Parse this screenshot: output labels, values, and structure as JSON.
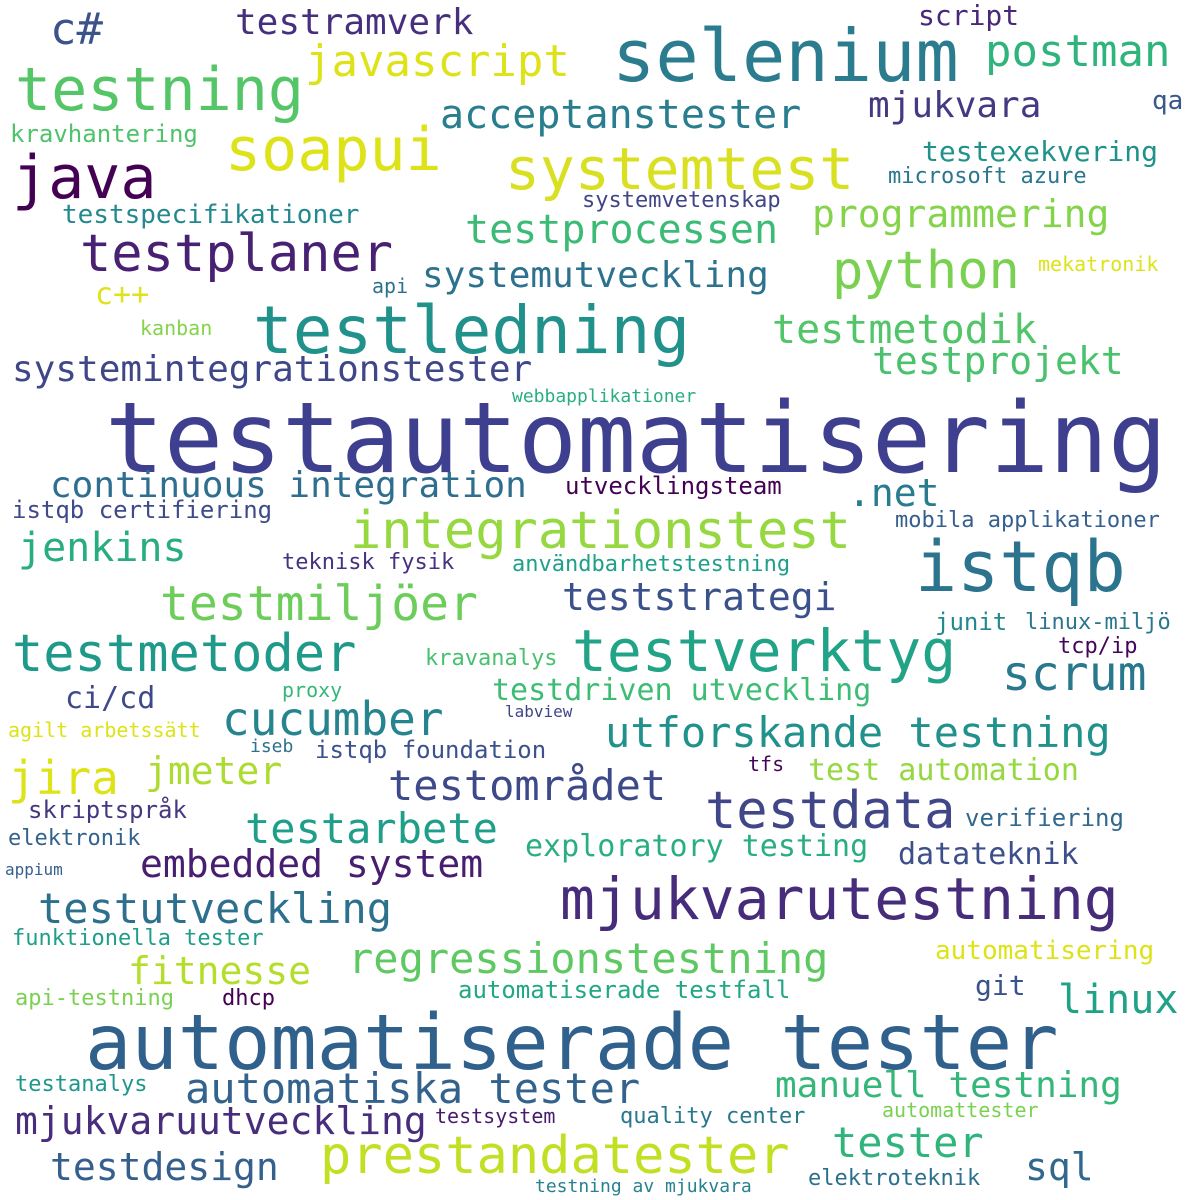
{
  "words": [
    {
      "text": "testautomatisering",
      "color": "#3f3f8f"
    },
    {
      "text": "automatiserade tester",
      "color": "#30608c"
    },
    {
      "text": "selenium",
      "color": "#2a7c8e"
    },
    {
      "text": "mjukvarutestning",
      "color": "#462c7a"
    },
    {
      "text": "testledning",
      "color": "#21918c"
    },
    {
      "text": "istqb",
      "color": "#2c738e"
    },
    {
      "text": "testverktyg",
      "color": "#20a386"
    },
    {
      "text": "systemtest",
      "color": "#d9e021"
    },
    {
      "text": "integrationstest",
      "color": "#95d840"
    },
    {
      "text": "prestandatester",
      "color": "#c2df23"
    },
    {
      "text": "testning",
      "color": "#55c667"
    },
    {
      "text": "soapui",
      "color": "#dde318"
    },
    {
      "text": "java",
      "color": "#440154"
    },
    {
      "text": "python",
      "color": "#7ad151"
    },
    {
      "text": "testplaner",
      "color": "#482173"
    },
    {
      "text": "testdata",
      "color": "#404688"
    },
    {
      "text": "testmetoder",
      "color": "#1f9a8a"
    },
    {
      "text": "testmiljöer",
      "color": "#6ccd5a"
    },
    {
      "text": "cucumber",
      "color": "#25848e"
    },
    {
      "text": "utforskande testning",
      "color": "#21918c"
    },
    {
      "text": "regressionstestning",
      "color": "#5ec962"
    },
    {
      "text": "automatiska tester",
      "color": "#33638d"
    },
    {
      "text": "testområdet",
      "color": "#3e4989"
    },
    {
      "text": "testutveckling",
      "color": "#2d708e"
    },
    {
      "text": "testarbete",
      "color": "#1f9e89"
    },
    {
      "text": "acceptanstester",
      "color": "#287d8e"
    },
    {
      "text": "javascript",
      "color": "#dde318"
    },
    {
      "text": "postman",
      "color": "#2fb47c"
    },
    {
      "text": "testprocessen",
      "color": "#3bbb75"
    },
    {
      "text": "programmering",
      "color": "#84d44b"
    },
    {
      "text": "testmetodik",
      "color": "#52c569"
    },
    {
      "text": "testprojekt",
      "color": "#4ac16d"
    },
    {
      "text": "systemutveckling",
      "color": "#2c728e"
    },
    {
      "text": "systemintegrationstester",
      "color": "#3f4788"
    },
    {
      "text": "continuous integration",
      "color": "#2e6e8e"
    },
    {
      "text": "jenkins",
      "color": "#27ad81"
    },
    {
      "text": "jira",
      "color": "#dde318"
    },
    {
      "text": "jmeter",
      "color": "#addc30"
    },
    {
      "text": "scrum",
      "color": "#2a788e"
    },
    {
      "text": "teststrategi",
      "color": "#3b518b"
    },
    {
      "text": "embedded system",
      "color": "#481f70"
    },
    {
      "text": "mjukvaruutveckling",
      "color": "#472d7b"
    },
    {
      "text": "testdesign",
      "color": "#355f8d"
    },
    {
      "text": "manuell testning",
      "color": "#35b779"
    },
    {
      "text": "tester",
      "color": "#2fb47c"
    },
    {
      "text": "linux",
      "color": "#1fa287"
    },
    {
      "text": "sql",
      "color": "#31688e"
    },
    {
      "text": "fitnesse",
      "color": "#b5de2b"
    },
    {
      "text": "mjukvara",
      "color": "#443a83"
    },
    {
      "text": "testramverk",
      "color": "#472f7d"
    },
    {
      "text": "c#",
      "color": "#3b528b"
    },
    {
      "text": "exploratory testing",
      "color": "#29af7f"
    },
    {
      "text": "datateknik",
      "color": "#3c4f8a"
    },
    {
      "text": "testdriven utveckling",
      "color": "#3dbc74"
    },
    {
      "text": "test automation",
      "color": "#95d840"
    },
    {
      "text": "script",
      "color": "#482878"
    },
    {
      "text": "qa",
      "color": "#38588c"
    },
    {
      "text": "kravhantering",
      "color": "#4ec36b"
    },
    {
      "text": "testexekvering",
      "color": "#20928c"
    },
    {
      "text": "microsoft azure",
      "color": "#2a768e"
    },
    {
      "text": "testspecifikationer",
      "color": "#23898e"
    },
    {
      "text": "systemvetenskap",
      "color": "#404588"
    },
    {
      "text": ".net",
      "color": "#297b8e"
    },
    {
      "text": "c++",
      "color": "#dde318"
    },
    {
      "text": "api",
      "color": "#2c728e"
    },
    {
      "text": "kanban",
      "color": "#84d44b"
    },
    {
      "text": "mekatronik",
      "color": "#dde318"
    },
    {
      "text": "webbapplikationer",
      "color": "#29af7f"
    },
    {
      "text": "utvecklingsteam",
      "color": "#440154"
    },
    {
      "text": "istqb certifiering",
      "color": "#3e4a89"
    },
    {
      "text": "mobila applikationer",
      "color": "#355f8d"
    },
    {
      "text": "teknisk fysik",
      "color": "#46327e"
    },
    {
      "text": "användbarhetstestning",
      "color": "#1fa088"
    },
    {
      "text": "junit",
      "color": "#23898e"
    },
    {
      "text": "linux-miljö",
      "color": "#2a768e"
    },
    {
      "text": "tcp/ip",
      "color": "#450559"
    },
    {
      "text": "kravanalys",
      "color": "#48c16e"
    },
    {
      "text": "proxy",
      "color": "#35b779"
    },
    {
      "text": "ci/cd",
      "color": "#3e4989"
    },
    {
      "text": "labview",
      "color": "#404588"
    },
    {
      "text": "agilt arbetssätt",
      "color": "#dde318"
    },
    {
      "text": "iseb",
      "color": "#2d718e"
    },
    {
      "text": "istqb foundation",
      "color": "#3b528b"
    },
    {
      "text": "tfs",
      "color": "#450559"
    },
    {
      "text": "skriptspråk",
      "color": "#453781"
    },
    {
      "text": "elektronik",
      "color": "#33638d"
    },
    {
      "text": "verifiering",
      "color": "#31688e"
    },
    {
      "text": "appium",
      "color": "#355f8d"
    },
    {
      "text": "funktionella tester",
      "color": "#1f9e89"
    },
    {
      "text": "automatisering",
      "color": "#dde318"
    },
    {
      "text": "automatiserade testfall",
      "color": "#22a785"
    },
    {
      "text": "git",
      "color": "#3a538b"
    },
    {
      "text": "api-testning",
      "color": "#7ad151"
    },
    {
      "text": "dhcp",
      "color": "#440154"
    },
    {
      "text": "testanalys",
      "color": "#1f978b"
    },
    {
      "text": "testsystem",
      "color": "#481a6c"
    },
    {
      "text": "quality center",
      "color": "#2a788e"
    },
    {
      "text": "automattester",
      "color": "#7ad151"
    },
    {
      "text": "elektroteknik",
      "color": "#2d708e"
    },
    {
      "text": "testning av mjukvara",
      "color": "#26828e"
    }
  ]
}
